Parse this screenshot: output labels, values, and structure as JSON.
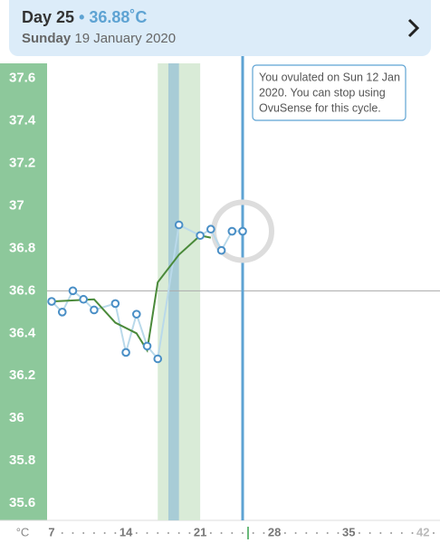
{
  "header": {
    "day": "Day 25",
    "separator": "•",
    "temp": "36.88˚C",
    "weekday": "Sunday",
    "date": "19 January 2020"
  },
  "chart_data": {
    "type": "line",
    "y_unit": "°C",
    "annotation": [
      "You ovulated on Sun 12 Jan",
      "2020. You can stop using",
      "OvuSense for this cycle."
    ],
    "xlim": [
      6.57,
      43.6
    ],
    "xticks": [
      7,
      14,
      21,
      28,
      35,
      42
    ],
    "ylim": [
      35.52,
      37.67
    ],
    "yticks": [
      35.6,
      35.8,
      36,
      36.2,
      36.4,
      36.6,
      36.8,
      37,
      37.2,
      37.4,
      37.6
    ],
    "bands": [
      {
        "range": [
          17,
          21
        ],
        "color": "#d9ebd7"
      },
      {
        "range": [
          18,
          19
        ],
        "color": "#a8ccd6"
      }
    ],
    "hline": 36.6,
    "selected_x": 25,
    "series": [
      {
        "color": "#4a8fc6",
        "line_color": "#b9d9ea",
        "markers": true,
        "x": [
          7,
          8,
          9,
          10,
          11,
          13,
          14,
          15,
          16,
          17,
          19,
          21,
          22,
          23,
          24,
          25
        ],
        "values": [
          36.55,
          36.5,
          36.6,
          36.56,
          36.51,
          36.54,
          36.31,
          36.49,
          36.34,
          36.28,
          36.91,
          36.86,
          36.89,
          36.79,
          36.88,
          36.88
        ]
      },
      {
        "color": "#4a8a3a",
        "markers": false,
        "x": [
          7,
          11,
          13,
          15,
          16,
          17,
          19,
          21,
          22
        ],
        "values": [
          36.55,
          36.56,
          36.45,
          36.4,
          36.32,
          36.64,
          36.77,
          36.86,
          36.85
        ]
      }
    ]
  }
}
